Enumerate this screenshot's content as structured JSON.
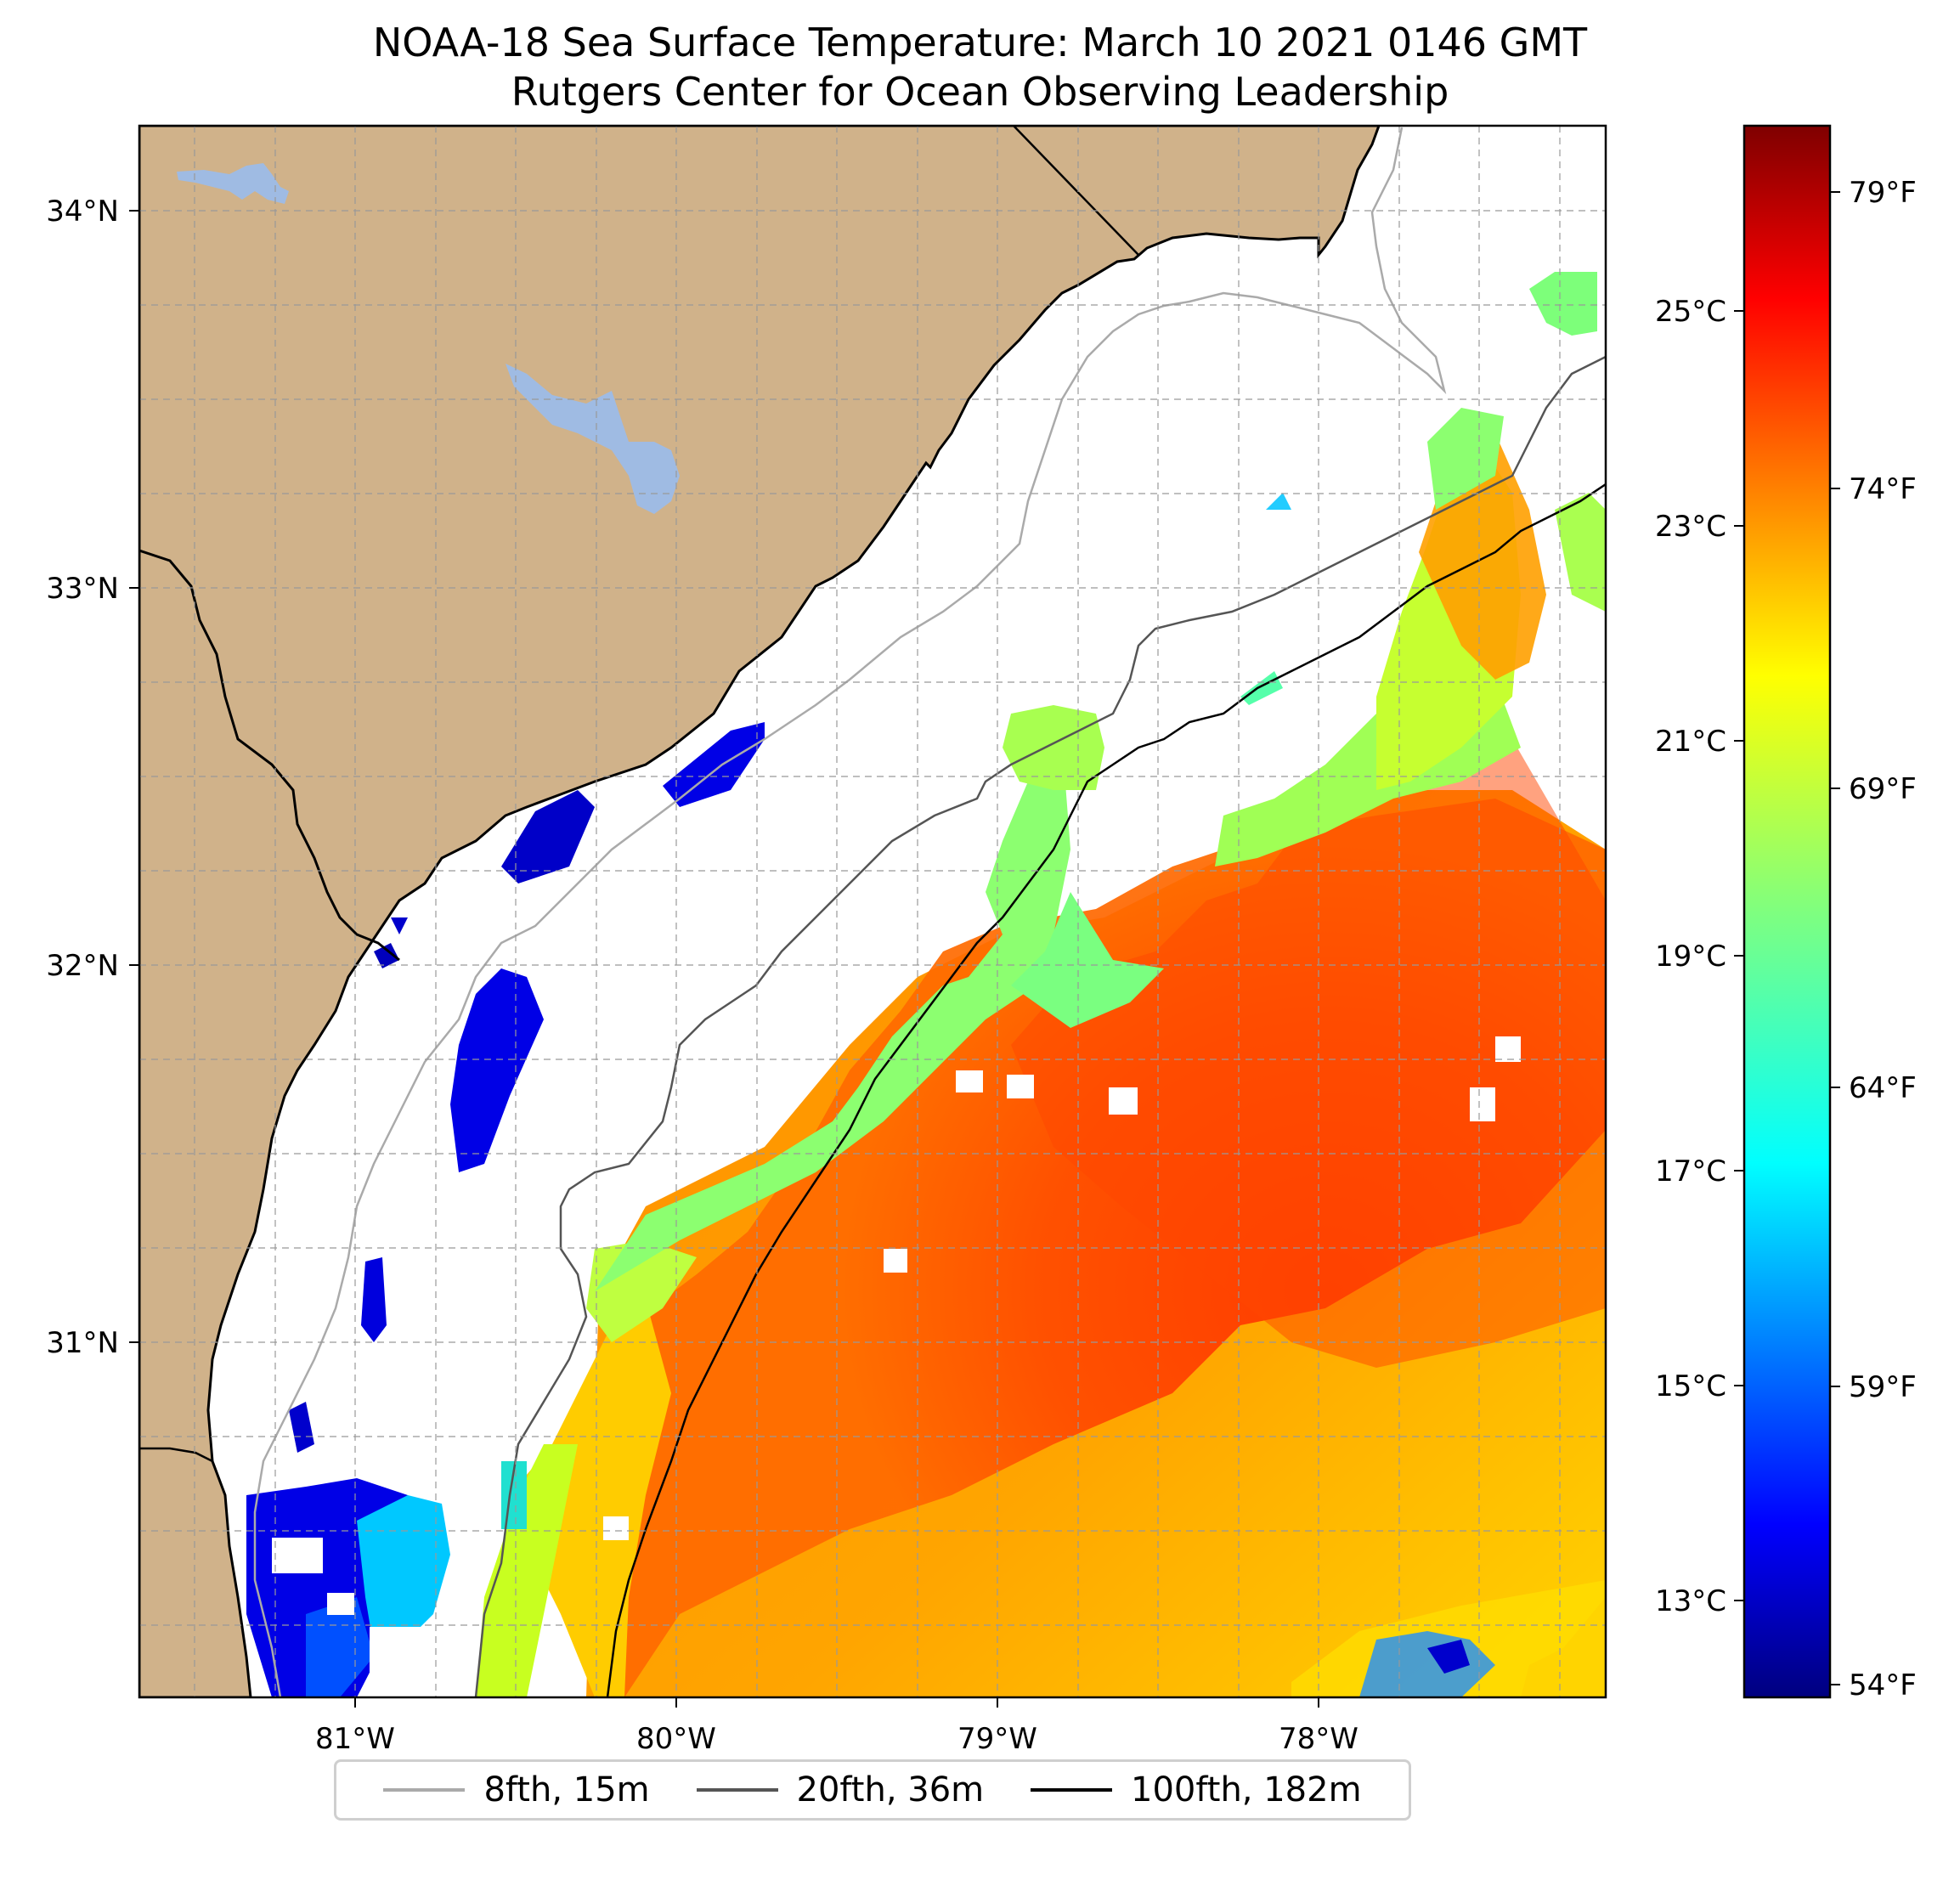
{
  "title_line1": "NOAA-18 Sea Surface Temperature: March 10 2021 0146 GMT",
  "title_line2": "Rutgers Center for Ocean Observing Leadership",
  "map": {
    "lon_range": [
      -81.68,
      -77.12
    ],
    "lat_range": [
      30.08,
      34.22
    ],
    "lon_ticks": [
      {
        "value": -81,
        "label": "81°W"
      },
      {
        "value": -80,
        "label": "80°W"
      },
      {
        "value": -79,
        "label": "79°W"
      },
      {
        "value": -78,
        "label": "78°W"
      }
    ],
    "lat_ticks": [
      {
        "value": 34,
        "label": "34°N"
      },
      {
        "value": 33,
        "label": "33°N"
      },
      {
        "value": 32,
        "label": "32°N"
      },
      {
        "value": 31,
        "label": "31°N"
      }
    ],
    "gridlines": true,
    "colors": {
      "land": "#d0b28a",
      "lakes": "#9fbbe3",
      "ocean_no_data": "#ffffff",
      "coastline": "#000000"
    }
  },
  "colorbar": {
    "colormap": "jet",
    "celsius_ticks": [
      {
        "value": 25,
        "label": "25°C"
      },
      {
        "value": 23,
        "label": "23°C"
      },
      {
        "value": 21,
        "label": "21°C"
      },
      {
        "value": 19,
        "label": "19°C"
      },
      {
        "value": 17,
        "label": "17°C"
      },
      {
        "value": 15,
        "label": "15°C"
      },
      {
        "value": 13,
        "label": "13°C"
      }
    ],
    "fahrenheit_ticks": [
      {
        "value": 79,
        "label": "79°F"
      },
      {
        "value": 74,
        "label": "74°F"
      },
      {
        "value": 69,
        "label": "69°F"
      },
      {
        "value": 64,
        "label": "64°F"
      },
      {
        "value": 59,
        "label": "59°F"
      },
      {
        "value": 54,
        "label": "54°F"
      }
    ],
    "range_f": [
      53.6,
      80.6
    ]
  },
  "legend": {
    "items": [
      {
        "label": "8fth, 15m",
        "color": "#aaaaaa"
      },
      {
        "label": "20fth, 36m",
        "color": "#555555"
      },
      {
        "label": "100fth, 182m",
        "color": "#000000"
      }
    ]
  }
}
